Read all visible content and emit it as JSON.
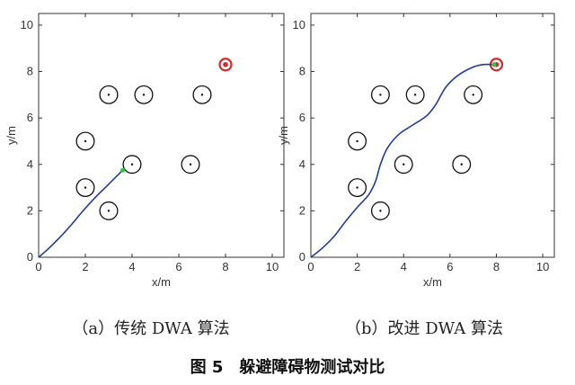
{
  "figure": {
    "title": "图 5　躲避障碍物测试对比"
  },
  "panels": [
    {
      "id": "a",
      "caption": "（a）传统 DWA 算法",
      "xlabel": "x/m",
      "ylabel": "y/m",
      "xlim": [
        0,
        10.5
      ],
      "ylim": [
        0,
        10.5
      ],
      "ticks": [
        0,
        2,
        4,
        6,
        8,
        10
      ],
      "show_ylabel": true
    },
    {
      "id": "b",
      "caption": "（b）改进 DWA 算法",
      "xlabel": "x/m",
      "ylabel": "y/m",
      "xlim": [
        0,
        10.5
      ],
      "ylim": [
        0,
        10.5
      ],
      "ticks": [
        0,
        2,
        4,
        6,
        8,
        10
      ],
      "show_ylabel": true
    }
  ],
  "chart_data": [
    {
      "type": "line",
      "panel": "a",
      "obstacles": [
        [
          3,
          7
        ],
        [
          4.5,
          7
        ],
        [
          7,
          7
        ],
        [
          2,
          5
        ],
        [
          4,
          4
        ],
        [
          6.5,
          4
        ],
        [
          2,
          3
        ],
        [
          3,
          2
        ]
      ],
      "obstacle_radius": 0.38,
      "goal": [
        8,
        8.3
      ],
      "start": [
        0,
        0
      ],
      "path": [
        [
          0,
          0
        ],
        [
          0.4,
          0.35
        ],
        [
          0.9,
          0.85
        ],
        [
          1.4,
          1.4
        ],
        [
          1.9,
          2.0
        ],
        [
          2.4,
          2.55
        ],
        [
          2.9,
          3.05
        ],
        [
          3.3,
          3.45
        ],
        [
          3.6,
          3.75
        ]
      ],
      "path_end": [
        3.6,
        3.75
      ],
      "colors": {
        "path": "#1f3c9a",
        "obstacle": "#111111",
        "goal": "#d62828",
        "marker": "#2ecc40"
      }
    },
    {
      "type": "line",
      "panel": "b",
      "obstacles": [
        [
          3,
          7
        ],
        [
          4.5,
          7
        ],
        [
          7,
          7
        ],
        [
          2,
          5
        ],
        [
          4,
          4
        ],
        [
          6.5,
          4
        ],
        [
          2,
          3
        ],
        [
          3,
          2
        ]
      ],
      "obstacle_radius": 0.38,
      "goal": [
        8,
        8.3
      ],
      "start": [
        0,
        0
      ],
      "path": [
        [
          0,
          0
        ],
        [
          0.5,
          0.4
        ],
        [
          1.0,
          0.9
        ],
        [
          1.5,
          1.55
        ],
        [
          2.0,
          2.15
        ],
        [
          2.5,
          2.7
        ],
        [
          2.8,
          3.3
        ],
        [
          3.0,
          4.0
        ],
        [
          3.3,
          4.7
        ],
        [
          3.8,
          5.3
        ],
        [
          4.4,
          5.7
        ],
        [
          5.0,
          6.1
        ],
        [
          5.4,
          6.6
        ],
        [
          5.8,
          7.3
        ],
        [
          6.3,
          7.8
        ],
        [
          6.9,
          8.15
        ],
        [
          7.4,
          8.3
        ],
        [
          7.9,
          8.3
        ]
      ],
      "path_end": [
        7.9,
        8.3
      ],
      "colors": {
        "path": "#1f3c9a",
        "obstacle": "#111111",
        "goal": "#d62828",
        "marker": "#2ecc40"
      }
    }
  ]
}
